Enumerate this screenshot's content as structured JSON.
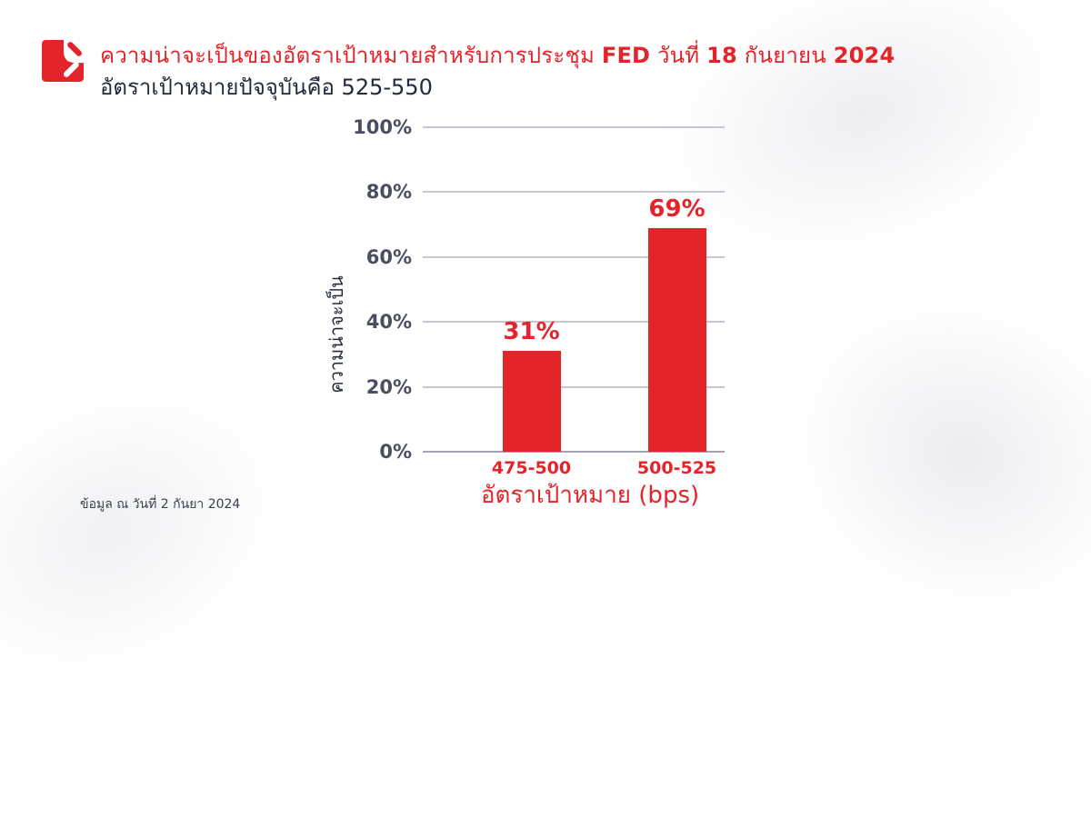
{
  "colors": {
    "brand_red": "#E3242B",
    "text_dark": "#232A3B",
    "tick_gray": "#4B4E60",
    "gridline": "#C6C7D3",
    "axis_line": "#A3A4B1"
  },
  "header": {
    "logo_icon": "brand-logo-icon",
    "title_segments": [
      {
        "text": "ความน่าจะเป็นของอัตราเป้าหมายสำหรับการประชุม ",
        "bold": false
      },
      {
        "text": "FED",
        "bold": true
      },
      {
        "text": " วันที่ ",
        "bold": false
      },
      {
        "text": "18",
        "bold": true
      },
      {
        "text": " กันยายน ",
        "bold": false
      },
      {
        "text": "2024",
        "bold": true
      }
    ],
    "subtitle": "อัตราเป้าหมายปัจจุบันคือ 525-550"
  },
  "footer": {
    "note": "ข้อมูล ณ วันที่ 2 กันยา 2024"
  },
  "chart_data": {
    "type": "bar",
    "categories": [
      "475-500",
      "500-525"
    ],
    "values": [
      31,
      69
    ],
    "value_labels": [
      "31%",
      "69%"
    ],
    "title": "ความน่าจะเป็นของอัตราเป้าหมายสำหรับการประชุม FED วันที่ 18 กันยายน 2024",
    "xlabel": "อัตราเป้าหมาย (bps)",
    "ylabel": "ความน่าจะเป็น",
    "ylim": [
      0,
      100
    ],
    "yticks": [
      0,
      20,
      40,
      60,
      80,
      100
    ],
    "ytick_labels": [
      "0%",
      "20%",
      "40%",
      "60%",
      "80%",
      "100%"
    ],
    "grid": true,
    "legend": false,
    "bar_color": "#E3242B",
    "value_label_color": "#E3242B"
  }
}
